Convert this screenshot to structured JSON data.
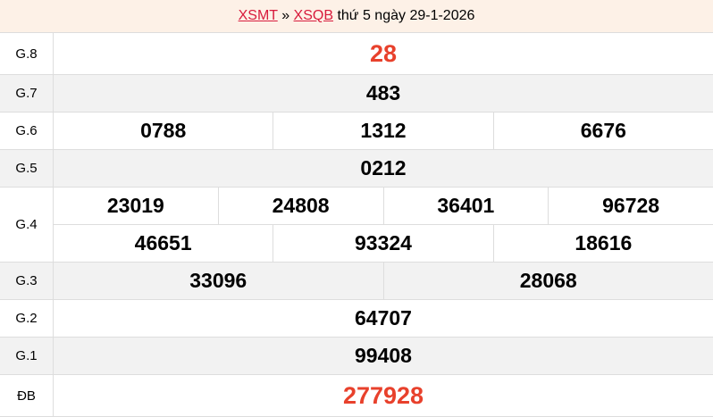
{
  "header": {
    "link1": "XSMT",
    "sep": " » ",
    "link2": "XSQB",
    "text": " thứ 5 ngày 29-1-2026"
  },
  "prizes": [
    {
      "label": "G.8",
      "lines": [
        [
          "28"
        ]
      ],
      "highlight": true
    },
    {
      "label": "G.7",
      "lines": [
        [
          "483"
        ]
      ]
    },
    {
      "label": "G.6",
      "lines": [
        [
          "0788",
          "1312",
          "6676"
        ]
      ]
    },
    {
      "label": "G.5",
      "lines": [
        [
          "0212"
        ]
      ]
    },
    {
      "label": "G.4",
      "lines": [
        [
          "23019",
          "24808",
          "36401",
          "96728"
        ],
        [
          "46651",
          "93324",
          "18616"
        ]
      ]
    },
    {
      "label": "G.3",
      "lines": [
        [
          "33096",
          "28068"
        ]
      ]
    },
    {
      "label": "G.2",
      "lines": [
        [
          "64707"
        ]
      ]
    },
    {
      "label": "G.1",
      "lines": [
        [
          "99408"
        ]
      ]
    },
    {
      "label": "ĐB",
      "lines": [
        [
          "277928"
        ]
      ],
      "highlight": true
    }
  ],
  "colors": {
    "highlight": "#e8412c",
    "link": "#d81b3c",
    "header_bg": "#fdf1e7",
    "alt_row": "#f2f2f2"
  }
}
